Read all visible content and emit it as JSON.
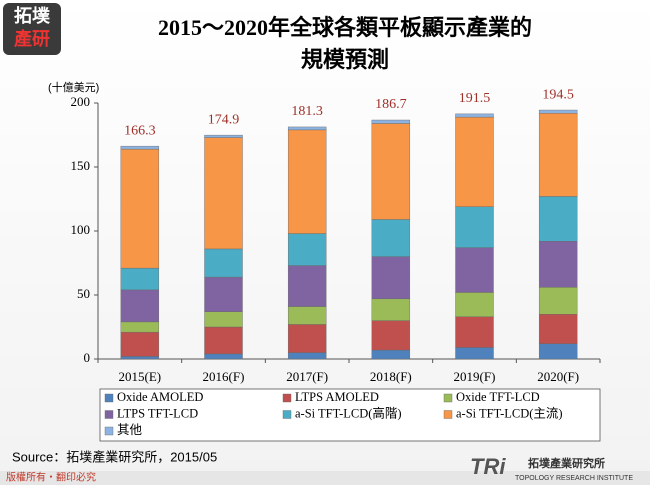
{
  "logo": [
    "拓墣",
    "產研"
  ],
  "chart_data": {
    "type": "stacked_bar",
    "title_lines": [
      "2015～2020年全球各類平板顯示產業的",
      "規模預測"
    ],
    "y_unit": "(十億美元)",
    "categories": [
      "2015(E)",
      "2016(F)",
      "2017(F)",
      "2018(F)",
      "2019(F)",
      "2020(F)"
    ],
    "totals": [
      166.3,
      174.9,
      181.3,
      186.7,
      191.5,
      194.5
    ],
    "series": [
      {
        "name": "Oxide AMOLED",
        "color": "#4f81bd",
        "values": [
          2,
          4,
          5,
          7,
          9,
          12
        ]
      },
      {
        "name": "LTPS AMOLED",
        "color": "#c0504d",
        "values": [
          19,
          21,
          22,
          23,
          24,
          23
        ]
      },
      {
        "name": "Oxide TFT-LCD",
        "color": "#9bbb59",
        "values": [
          8,
          12,
          14,
          17,
          19,
          21
        ]
      },
      {
        "name": "LTPS TFT-LCD",
        "color": "#8064a2",
        "values": [
          25,
          27,
          32,
          33,
          35,
          36
        ]
      },
      {
        "name": "a-Si TFT-LCD(高階)",
        "color": "#4bacc6",
        "values": [
          17,
          22,
          25,
          29,
          32,
          35
        ]
      },
      {
        "name": "a-Si TFT-LCD(主流)",
        "color": "#f79646",
        "values": [
          93,
          87,
          81,
          75,
          70,
          65
        ]
      },
      {
        "name": "其他",
        "color": "#8db3e2",
        "values": [
          2.3,
          1.9,
          2.3,
          2.7,
          2.5,
          2.5
        ]
      }
    ],
    "ylim": [
      0,
      200
    ],
    "yticks": [
      0,
      50,
      100,
      150,
      200
    ],
    "grid": false
  },
  "source": "Source：拓墣產業研究所，2015/05",
  "footer": {
    "copyright": "版權所有・翻印必究",
    "brand": "TRi",
    "brand_name": "拓墣產業研究所",
    "brand_en": "TOPOLOGY RESEARCH INSTITUTE"
  }
}
